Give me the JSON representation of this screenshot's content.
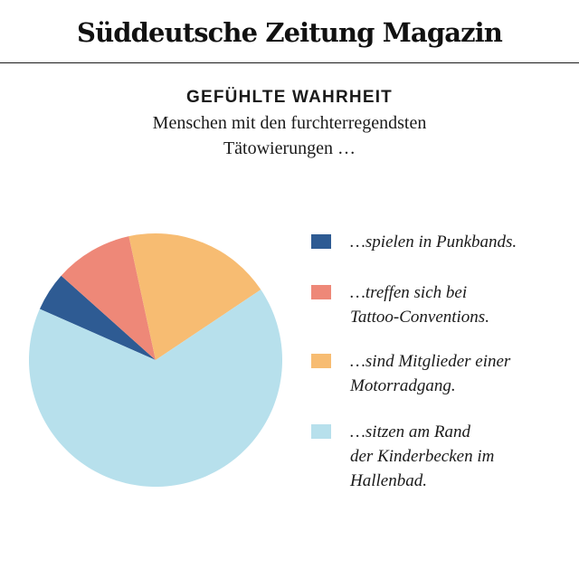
{
  "masthead": {
    "title": "Süddeutsche Zeitung Magazin"
  },
  "chart_data": {
    "type": "pie",
    "title": "GEFÜHLTE WAHRHEIT",
    "subtitle": "Menschen mit den furchterregendsten\nTätowierungen …",
    "legend_position": "right",
    "slices": [
      {
        "label": "…spielen in Punkbands.",
        "value": 5,
        "color": "#2e5b93"
      },
      {
        "label": "…treffen sich bei\nTattoo-Conventions.",
        "value": 10,
        "color": "#ee8878"
      },
      {
        "label": "…sind Mitglieder einer\nMotorradgang.",
        "value": 19,
        "color": "#f7bc72"
      },
      {
        "label": "…sitzen am Rand\nder Kinderbecken im\nHallenbad.",
        "value": 66,
        "color": "#b7e0ec"
      }
    ]
  }
}
